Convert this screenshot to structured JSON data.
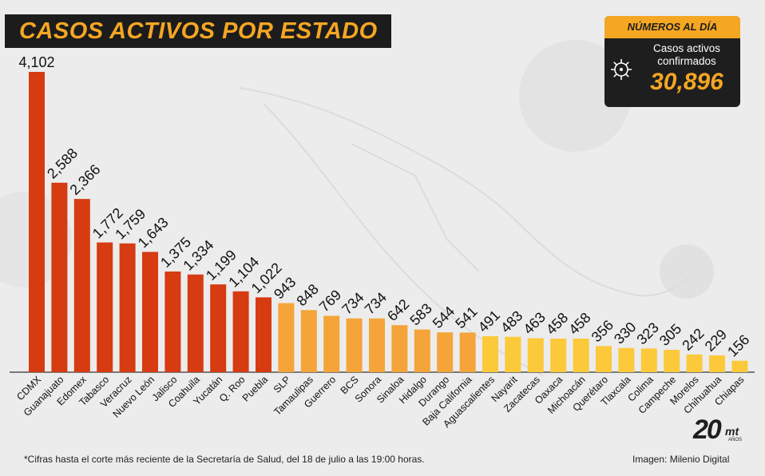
{
  "title": "CASOS ACTIVOS POR ESTADO",
  "stat_box": {
    "heading": "NÚMEROS AL DÍA",
    "label": "Casos activos confirmados",
    "value": "30,896"
  },
  "footnote": "*Cifras hasta el corte más reciente de la Secretaría de Salud, del 18 de julio a las 19:00 horas.",
  "credit": "Imagen: Milenio Digital",
  "logo": {
    "number": "20",
    "mark": "mt",
    "small": "AÑOS"
  },
  "colors": {
    "top_bars": "#d63b12",
    "middle_bars": "#f5a43a",
    "bottom_bars": "#fcc93a",
    "title_bg": "#1c1c1c",
    "accent": "#f5a623"
  },
  "chart_data": {
    "type": "bar",
    "title": "CASOS ACTIVOS POR ESTADO",
    "xlabel": "",
    "ylabel": "",
    "grid": false,
    "categories": [
      "CDMX",
      "Guanajuato",
      "Edomex",
      "Tabasco",
      "Veracruz",
      "Nuevo León",
      "Jalisco",
      "Coahuila",
      "Yucatán",
      "Q. Roo",
      "Puebla",
      "SLP",
      "Tamaulipas",
      "Guerrero",
      "BCS",
      "Sonora",
      "Sinaloa",
      "Hidalgo",
      "Durango",
      "Baja California",
      "Aguascalientes",
      "Nayarit",
      "Zacatecas",
      "Oaxaca",
      "Michoacán",
      "Querétaro",
      "Tlaxcala",
      "Colima",
      "Campeche",
      "Morelos",
      "Chihuahua",
      "Chiapas"
    ],
    "values": [
      4102,
      2588,
      2366,
      1772,
      1759,
      1643,
      1375,
      1334,
      1199,
      1104,
      1022,
      943,
      848,
      769,
      734,
      734,
      642,
      583,
      544,
      541,
      491,
      483,
      463,
      458,
      458,
      356,
      330,
      323,
      305,
      242,
      229,
      156
    ],
    "value_labels": [
      "4,102",
      "2,588",
      "2,366",
      "1,772",
      "1,759",
      "1,643",
      "1,375",
      "1,334",
      "1,199",
      "1,104",
      "1,022",
      "943",
      "848",
      "769",
      "734",
      "734",
      "642",
      "583",
      "544",
      "541",
      "491",
      "483",
      "463",
      "458",
      "458",
      "356",
      "330",
      "323",
      "305",
      "242",
      "229",
      "156"
    ],
    "color_groups": [
      "top",
      "top",
      "top",
      "top",
      "top",
      "top",
      "top",
      "top",
      "top",
      "top",
      "top",
      "middle",
      "middle",
      "middle",
      "middle",
      "middle",
      "middle",
      "middle",
      "middle",
      "middle",
      "bottom",
      "bottom",
      "bottom",
      "bottom",
      "bottom",
      "bottom",
      "bottom",
      "bottom",
      "bottom",
      "bottom",
      "bottom",
      "bottom"
    ]
  }
}
